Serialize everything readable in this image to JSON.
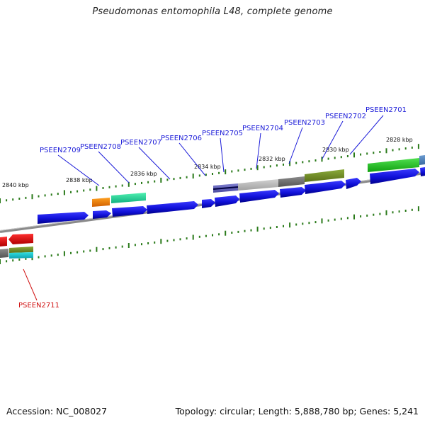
{
  "title": "Pseudomonas entomophila L48, complete genome",
  "accession_text": "Accession: NC_008027",
  "summary_text": "Topology: circular; Length: 5,888,780 bp; Genes: 5,241",
  "colors": {
    "forward_gene": "#1a1ae0",
    "reverse_gene": "#e01010",
    "backbone": "#808080",
    "tick": "#2a7a1a",
    "label_blue": "#1a1ad8",
    "label_red": "#d01010"
  },
  "kbp_labels": [
    "2828 kbp",
    "2830 kbp",
    "2832 kbp",
    "2834 kbp",
    "2836 kbp",
    "2838 kbp",
    "2840 kbp"
  ],
  "gene_labels": [
    {
      "text": "PSEEN2701",
      "strand": "forward"
    },
    {
      "text": "PSEEN2702",
      "strand": "forward"
    },
    {
      "text": "PSEEN2703",
      "strand": "forward"
    },
    {
      "text": "PSEEN2704",
      "strand": "forward"
    },
    {
      "text": "PSEEN2705",
      "strand": "forward"
    },
    {
      "text": "PSEEN2706",
      "strand": "forward"
    },
    {
      "text": "PSEEN2707",
      "strand": "forward"
    },
    {
      "text": "PSEEN2708",
      "strand": "forward"
    },
    {
      "text": "PSEEN2709",
      "strand": "forward"
    },
    {
      "text": "PSEEN2711",
      "strand": "reverse"
    }
  ]
}
